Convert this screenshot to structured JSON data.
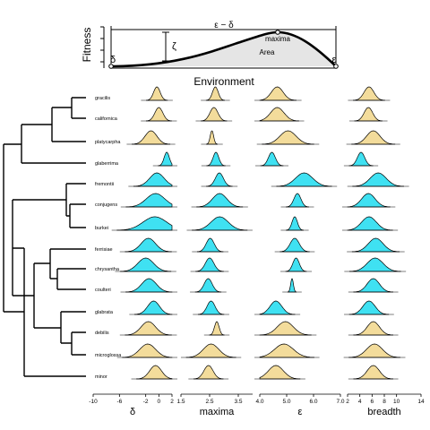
{
  "top_panel": {
    "ylabel": "Fitness",
    "xlabel": "Environment",
    "range_label": "ε − δ",
    "maxima_label": "maxima",
    "area_label": "Area",
    "zeta_label": "ζ",
    "delta_label": "δ",
    "epsilon_label": "ε"
  },
  "taxa": [
    {
      "name": "gracilis",
      "clade": "tan"
    },
    {
      "name": "californica",
      "clade": "tan"
    },
    {
      "name": "platycarpha",
      "clade": "tan"
    },
    {
      "name": "glaberrima",
      "clade": "cyan"
    },
    {
      "name": "fremontii",
      "clade": "cyan"
    },
    {
      "name": "conjugens",
      "clade": "cyan"
    },
    {
      "name": "burkei",
      "clade": "cyan"
    },
    {
      "name": "ferrisiae",
      "clade": "cyan"
    },
    {
      "name": "chrysantha",
      "clade": "cyan"
    },
    {
      "name": "coulteri",
      "clade": "cyan"
    },
    {
      "name": "glabrata",
      "clade": "cyan"
    },
    {
      "name": "debilis",
      "clade": "tan"
    },
    {
      "name": "microglossa",
      "clade": "tan"
    },
    {
      "name": "minor",
      "clade": "tan"
    }
  ],
  "colors": {
    "tan": "#f3dc9b",
    "cyan": "#3fe1f2"
  },
  "panels": [
    {
      "key": "delta",
      "label": "δ",
      "ticks": [
        "-10",
        "-6",
        "-2",
        "0",
        "2"
      ],
      "tick_values": [
        -10,
        -6,
        -2,
        0,
        2
      ],
      "range": [
        -10,
        2
      ]
    },
    {
      "key": "maxima",
      "label": "maxima",
      "ticks": [
        "1.5",
        "2.5",
        "3.5"
      ],
      "tick_values": [
        1.5,
        2.5,
        3.5
      ],
      "range": [
        1.5,
        4.0
      ]
    },
    {
      "key": "epsilon",
      "label": "ε",
      "ticks": [
        "4.0",
        "5.0",
        "6.0",
        "7.0"
      ],
      "tick_values": [
        4,
        5,
        6,
        7
      ],
      "range": [
        4.0,
        7.0
      ]
    },
    {
      "key": "breadth",
      "label": "breadth",
      "ticks": [
        "2",
        "4",
        "6",
        "8",
        "10",
        "14"
      ],
      "tick_values": [
        2,
        4,
        6,
        8,
        10,
        14
      ],
      "range": [
        2,
        14
      ]
    }
  ],
  "densities": {
    "delta": [
      [
        -0.3,
        0.5
      ],
      [
        0.0,
        0.6
      ],
      [
        -1.2,
        0.9
      ],
      [
        1.2,
        0.4
      ],
      [
        -0.3,
        1.1
      ],
      [
        -0.5,
        1.4
      ],
      [
        -0.6,
        1.8
      ],
      [
        -1.6,
        1.1
      ],
      [
        -2.0,
        1.2
      ],
      [
        -1.5,
        1.1
      ],
      [
        -0.8,
        0.9
      ],
      [
        -1.6,
        1.1
      ],
      [
        -1.7,
        1.2
      ],
      [
        -0.5,
        0.9
      ]
    ],
    "maxima": [
      [
        2.7,
        0.1
      ],
      [
        2.65,
        0.14
      ],
      [
        2.58,
        0.06
      ],
      [
        2.72,
        0.1
      ],
      [
        2.84,
        0.14
      ],
      [
        2.85,
        0.25
      ],
      [
        2.85,
        0.3
      ],
      [
        2.52,
        0.14
      ],
      [
        2.5,
        0.15
      ],
      [
        2.45,
        0.14
      ],
      [
        2.55,
        0.14
      ],
      [
        2.75,
        0.08
      ],
      [
        2.55,
        0.27
      ],
      [
        2.46,
        0.16
      ]
    ],
    "epsilon": [
      [
        4.65,
        0.22
      ],
      [
        4.65,
        0.25
      ],
      [
        5.05,
        0.3
      ],
      [
        4.45,
        0.13
      ],
      [
        5.65,
        0.32
      ],
      [
        5.4,
        0.13
      ],
      [
        5.3,
        0.1
      ],
      [
        5.3,
        0.17
      ],
      [
        5.35,
        0.12
      ],
      [
        5.2,
        0.05
      ],
      [
        4.6,
        0.22
      ],
      [
        4.95,
        0.3
      ],
      [
        4.9,
        0.35
      ],
      [
        4.6,
        0.28
      ]
    ],
    "breadth": [
      [
        5.5,
        0.8
      ],
      [
        5.4,
        0.7
      ],
      [
        6.2,
        1.1
      ],
      [
        4.2,
        0.6
      ],
      [
        7.0,
        1.3
      ],
      [
        5.4,
        1.1
      ],
      [
        5.5,
        1.2
      ],
      [
        6.6,
        1.2
      ],
      [
        6.5,
        1.3
      ],
      [
        6.2,
        1.0
      ],
      [
        5.5,
        1.0
      ],
      [
        6.2,
        1.0
      ],
      [
        6.4,
        1.3
      ],
      [
        6.2,
        1.0
      ]
    ]
  }
}
